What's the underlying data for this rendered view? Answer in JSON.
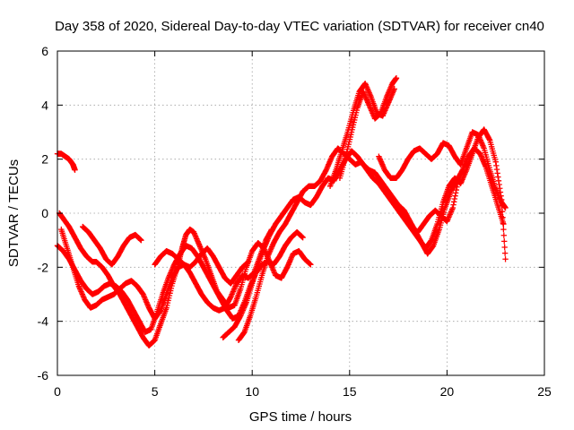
{
  "chart_data": {
    "type": "scatter",
    "title": "Day 358 of 2020, Sidereal Day-to-day VTEC variation (SDTVAR) for receiver cn40",
    "xlabel": "GPS time / hours",
    "ylabel": "SDTVAR / TECUs",
    "xlim": [
      0,
      25
    ],
    "ylim": [
      -6,
      6
    ],
    "xticks": [
      0,
      5,
      10,
      15,
      20,
      25
    ],
    "yticks": [
      -6,
      -4,
      -2,
      0,
      2,
      4,
      6
    ],
    "grid": true,
    "marker": "plus",
    "color": "#ff0000",
    "series": [
      {
        "x": [
          0.0,
          0.2,
          0.4,
          0.6,
          0.8,
          0.9
        ],
        "y": [
          2.2,
          2.2,
          2.1,
          2.0,
          1.8,
          1.6
        ]
      },
      {
        "x": [
          0.1,
          0.3,
          0.6,
          0.9,
          1.2,
          1.5,
          1.8,
          2.0,
          2.3,
          2.6,
          2.9,
          3.2,
          3.5,
          3.8,
          4.1,
          4.4,
          4.7,
          5.0,
          5.3,
          5.6,
          5.9,
          6.2,
          6.4,
          6.6,
          6.8,
          7.0,
          7.3,
          7.6,
          7.9,
          8.2,
          8.5,
          8.8,
          9.1,
          9.4,
          9.7,
          10.0,
          10.3,
          10.6,
          10.9,
          11.2,
          11.5,
          11.8,
          12.1,
          12.4,
          12.7,
          13.0
        ],
        "y": [
          0.0,
          -0.2,
          -0.5,
          -0.9,
          -1.3,
          -1.6,
          -1.8,
          -1.8,
          -2.0,
          -2.3,
          -2.7,
          -3.0,
          -3.4,
          -3.8,
          -4.2,
          -4.6,
          -4.9,
          -4.7,
          -4.1,
          -3.5,
          -2.6,
          -1.9,
          -1.3,
          -0.8,
          -0.6,
          -0.7,
          -1.2,
          -1.7,
          -2.3,
          -2.9,
          -3.2,
          -3.5,
          -3.4,
          -2.8,
          -2.0,
          -1.4,
          -1.1,
          -1.3,
          -1.8,
          -2.3,
          -2.4,
          -2.0,
          -1.5,
          -1.4,
          -1.7,
          -1.9
        ]
      },
      {
        "x": [
          0.0,
          0.3,
          0.6,
          0.9,
          1.2,
          1.5,
          1.8,
          2.1,
          2.4,
          2.7,
          3.0,
          3.3,
          3.6,
          3.9,
          4.2,
          4.5,
          4.8,
          5.1,
          5.4,
          5.7,
          6.0,
          6.3,
          6.6,
          6.9,
          7.2,
          7.5,
          7.8,
          8.1,
          8.4,
          8.7,
          9.0,
          9.3,
          9.6,
          9.9,
          10.2,
          10.5,
          10.8,
          11.1,
          11.4,
          11.7,
          12.0,
          12.3,
          12.6
        ],
        "y": [
          -1.2,
          -1.4,
          -1.7,
          -2.1,
          -2.5,
          -2.8,
          -3.0,
          -2.9,
          -2.7,
          -2.6,
          -2.7,
          -2.9,
          -3.2,
          -3.6,
          -4.0,
          -4.4,
          -4.3,
          -3.7,
          -3.0,
          -2.4,
          -1.9,
          -1.5,
          -1.2,
          -1.3,
          -1.6,
          -2.0,
          -2.4,
          -2.8,
          -3.2,
          -3.6,
          -3.9,
          -3.8,
          -3.3,
          -2.7,
          -2.2,
          -1.9,
          -1.8,
          -1.9,
          -1.6,
          -1.2,
          -0.9,
          -0.7,
          -0.9
        ]
      },
      {
        "x": [
          0.2,
          0.5,
          0.8,
          1.1,
          1.4,
          1.7,
          2.0,
          2.3,
          2.6,
          2.9,
          3.2,
          3.5,
          3.8,
          4.1,
          4.4,
          4.7,
          5.0,
          5.3,
          5.6,
          5.9,
          6.2,
          6.5,
          6.8,
          7.1,
          7.4,
          7.7,
          8.0,
          8.3,
          8.6,
          8.9,
          9.2,
          9.5,
          9.8,
          10.1,
          10.4,
          10.7,
          11.0
        ],
        "y": [
          -0.6,
          -1.3,
          -2.0,
          -2.7,
          -3.2,
          -3.5,
          -3.4,
          -3.2,
          -3.1,
          -3.0,
          -2.8,
          -2.6,
          -2.5,
          -2.7,
          -3.0,
          -3.5,
          -3.9,
          -3.6,
          -3.0,
          -2.4,
          -2.0,
          -1.9,
          -2.2,
          -2.6,
          -3.0,
          -3.3,
          -3.5,
          -3.6,
          -3.5,
          -3.1,
          -2.6,
          -2.3,
          -2.4,
          -2.2,
          -1.6,
          -1.0,
          -0.6
        ]
      },
      {
        "x": [
          1.3,
          1.6,
          1.9,
          2.2,
          2.5,
          2.8,
          3.1,
          3.4,
          3.7,
          4.0,
          4.3
        ],
        "y": [
          -0.5,
          -0.7,
          -1.0,
          -1.3,
          -1.7,
          -1.9,
          -1.6,
          -1.2,
          -0.9,
          -0.8,
          -1.0
        ]
      },
      {
        "x": [
          5.0,
          5.3,
          5.6,
          5.9,
          6.2,
          6.5,
          6.8,
          7.1,
          7.4,
          7.7,
          8.0,
          8.3,
          8.6,
          8.9,
          9.2,
          9.5,
          9.8
        ],
        "y": [
          -1.9,
          -1.6,
          -1.4,
          -1.5,
          -1.7,
          -1.9,
          -2.0,
          -1.8,
          -1.5,
          -1.3,
          -1.6,
          -2.0,
          -2.4,
          -2.6,
          -2.3,
          -2.0,
          -1.8
        ]
      },
      {
        "x": [
          8.5,
          8.8,
          9.1,
          9.4,
          9.7,
          10.0,
          10.3,
          10.6,
          10.9,
          11.2,
          11.5,
          11.8,
          12.1,
          12.4,
          12.7,
          13.0,
          13.3,
          13.6,
          13.9,
          14.2,
          14.5,
          14.8,
          15.1,
          15.4,
          15.7,
          16.0,
          16.3,
          16.6,
          16.9,
          17.2,
          17.5,
          17.8,
          18.1,
          18.4,
          18.7,
          19.0,
          19.3,
          19.6,
          19.9,
          20.2,
          20.5,
          20.8,
          21.1,
          21.4,
          21.7,
          22.0,
          22.3,
          22.6,
          22.9
        ],
        "y": [
          -4.6,
          -4.4,
          -4.2,
          -3.8,
          -3.3,
          -2.6,
          -1.9,
          -1.3,
          -0.8,
          -0.4,
          -0.1,
          0.2,
          0.5,
          0.6,
          0.4,
          0.3,
          0.6,
          1.0,
          1.3,
          1.2,
          1.6,
          2.0,
          2.3,
          2.1,
          1.8,
          1.6,
          1.5,
          1.2,
          0.9,
          0.6,
          0.3,
          0.1,
          -0.3,
          -0.7,
          -1.1,
          -1.5,
          -1.2,
          -0.6,
          0.2,
          0.8,
          1.2,
          1.6,
          2.1,
          2.4,
          2.2,
          1.7,
          1.0,
          0.3,
          -0.4
        ]
      },
      {
        "x": [
          9.3,
          9.6,
          9.9,
          10.2,
          10.5,
          10.8,
          11.1,
          11.4,
          11.7,
          12.0,
          12.3,
          12.6,
          12.9,
          13.2,
          13.5,
          13.8,
          14.1,
          14.4,
          14.7,
          15.0,
          15.3,
          15.6,
          15.9,
          16.2,
          16.5,
          16.8,
          17.1,
          17.4,
          17.7,
          18.0,
          18.3,
          18.6,
          18.9,
          19.2,
          19.5,
          19.8,
          20.1,
          20.4,
          20.7,
          21.0,
          21.3,
          21.6,
          21.9,
          22.2,
          22.5,
          22.8,
          23.0
        ],
        "y": [
          -4.7,
          -4.4,
          -3.8,
          -3.1,
          -2.3,
          -1.6,
          -1.1,
          -0.7,
          -0.4,
          0.0,
          0.4,
          0.8,
          1.0,
          1.0,
          1.2,
          1.6,
          2.1,
          2.4,
          2.2,
          2.0,
          1.8,
          1.9,
          1.6,
          1.3,
          1.1,
          0.8,
          0.5,
          0.2,
          -0.1,
          -0.4,
          -0.7,
          -1.0,
          -1.3,
          -1.0,
          -0.4,
          0.4,
          1.0,
          1.3,
          1.1,
          1.6,
          2.2,
          2.8,
          3.1,
          2.7,
          1.9,
          0.5,
          -1.7
        ]
      },
      {
        "x": [
          14.0,
          14.3,
          14.6,
          14.9,
          15.2,
          15.5,
          15.8,
          16.1,
          16.4,
          16.7,
          17.0,
          17.3
        ],
        "y": [
          1.0,
          1.6,
          2.3,
          3.0,
          3.8,
          4.5,
          4.8,
          4.3,
          3.7,
          3.6,
          4.1,
          4.6
        ]
      },
      {
        "x": [
          14.5,
          14.8,
          15.1,
          15.4,
          15.7,
          16.0,
          16.3,
          16.6,
          16.9,
          17.2,
          17.4
        ],
        "y": [
          1.3,
          2.1,
          3.0,
          3.9,
          4.5,
          4.0,
          3.5,
          3.7,
          4.3,
          4.8,
          5.0
        ]
      },
      {
        "x": [
          16.5,
          16.8,
          17.1,
          17.4,
          17.7,
          18.0,
          18.3,
          18.6,
          18.9,
          19.2,
          19.5,
          19.8,
          20.1,
          20.4,
          20.7,
          21.0,
          21.3,
          21.6,
          21.9,
          22.2,
          22.5,
          22.8,
          23.0
        ],
        "y": [
          2.1,
          1.6,
          1.3,
          1.3,
          1.6,
          2.0,
          2.3,
          2.4,
          2.2,
          2.0,
          2.2,
          2.6,
          2.5,
          2.1,
          1.8,
          2.4,
          3.0,
          2.9,
          2.4,
          1.6,
          0.9,
          0.4,
          0.2
        ]
      },
      {
        "x": [
          17.0,
          17.3,
          17.6,
          17.9,
          18.2,
          18.5,
          18.8,
          19.1,
          19.4,
          19.7,
          20.0,
          20.3,
          20.6
        ],
        "y": [
          0.7,
          0.4,
          0.1,
          -0.2,
          -0.5,
          -0.7,
          -0.4,
          -0.1,
          0.1,
          -0.1,
          -0.3,
          0.2,
          1.3
        ]
      }
    ]
  }
}
